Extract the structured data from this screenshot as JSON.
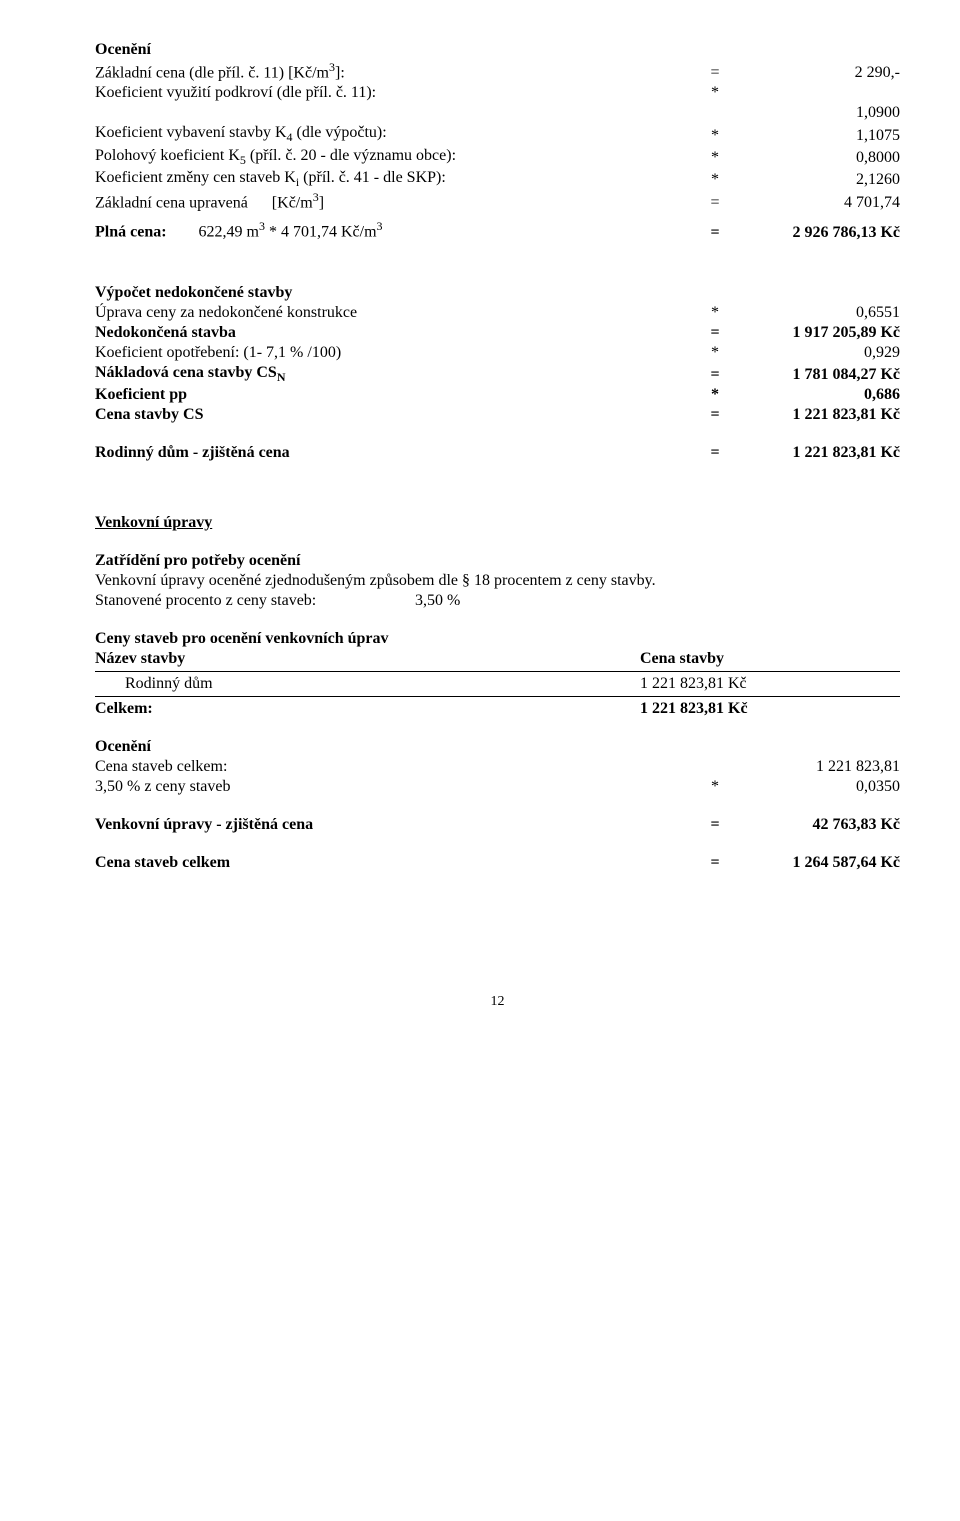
{
  "s1": {
    "title": "Ocenění",
    "rows": [
      {
        "label_html": "Základní cena (dle příl. č. 11) [Kč/m<span class='sup'>3</span>]:",
        "op": "=",
        "val": "2 290,-"
      },
      {
        "label_html": "Koeficient využití podkroví (dle příl. č. 11):",
        "op": "*",
        "val": ""
      },
      {
        "label_html": "",
        "op": "",
        "val": "1,0900"
      },
      {
        "label_html": "Koeficient vybavení stavby K<span class='sub'>4</span> (dle výpočtu):",
        "op": "*",
        "val": "1,1075"
      },
      {
        "label_html": "Polohový koeficient K<span class='sub'>5</span> (příl. č. 20 - dle významu obce):",
        "op": "*",
        "val": "0,8000"
      },
      {
        "label_html": "Koeficient změny cen staveb K<span class='sub'>i</span> (příl. č. 41 - dle SKP):",
        "op": "*",
        "val": "2,1260"
      },
      {
        "label_html": "Základní cena upravená&nbsp;&nbsp;&nbsp;&nbsp;&nbsp;&nbsp;[Kč/m<span class='sup'>3</span>]",
        "op": "=",
        "val": "4 701,74"
      }
    ],
    "plna": {
      "label_html": "<b>Plná cena:</b>&nbsp;&nbsp;&nbsp;&nbsp;&nbsp;&nbsp;&nbsp;&nbsp;622,49 m<span class='sup'>3</span> * 4 701,74 Kč/m<span class='sup'>3</span>",
      "op": "=",
      "val": "2 926 786,13 Kč"
    }
  },
  "s2": {
    "title": "Výpočet nedokončené stavby",
    "rows": [
      {
        "label": "Úprava ceny za nedokončené konstrukce",
        "op": "*",
        "val": "0,6551",
        "bold": false
      },
      {
        "label": "Nedokončená stavba",
        "op": "=",
        "val": "1 917 205,89 Kč",
        "bold": true
      },
      {
        "label": "Koeficient opotřebení: (1- 7,1 % /100)",
        "op": "*",
        "val": "0,929",
        "bold": false
      },
      {
        "label_html": "Nákladová cena stavby CS<span class='sub'>N</span>",
        "op": "=",
        "val": "1 781 084,27 Kč",
        "bold": true
      },
      {
        "label": "Koeficient pp",
        "op": "*",
        "val": "0,686",
        "bold": true
      },
      {
        "label": "Cena stavby CS",
        "op": "=",
        "val": "1 221 823,81 Kč",
        "bold": true
      }
    ],
    "final": {
      "label": "Rodinný dům - zjištěná cena",
      "op": "=",
      "val": "1 221 823,81 Kč"
    }
  },
  "s3": {
    "title": "Venkovní úpravy",
    "sub1": "Zatřídění pro potřeby ocenění",
    "line1": "Venkovní úpravy oceněné zjednodušeným způsobem dle § 18 procentem z ceny stavby.",
    "line2a": "Stanovené procento z ceny staveb:",
    "line2b": "3,50 %",
    "sub2": "Ceny staveb pro ocenění venkovních úprav",
    "thead": {
      "c1": "Název stavby",
      "c2": "Cena stavby"
    },
    "trow": {
      "c1": "Rodinný dům",
      "c2": "1 221 823,81 Kč"
    },
    "total": {
      "c1": "Celkem:",
      "c2": "1 221 823,81 Kč"
    },
    "oceneni_title": "Ocenění",
    "r1": {
      "label": "Cena staveb celkem:",
      "op": "",
      "val": "1 221 823,81"
    },
    "r2": {
      "label": "3,50 % z ceny staveb",
      "op": "*",
      "val": "0,0350"
    },
    "final1": {
      "label": "Venkovní úpravy - zjištěná cena",
      "op": "=",
      "val": "42 763,83 Kč"
    },
    "final2": {
      "label": "Cena staveb celkem",
      "op": "=",
      "val": "1 264 587,64 Kč"
    }
  },
  "page": "12"
}
